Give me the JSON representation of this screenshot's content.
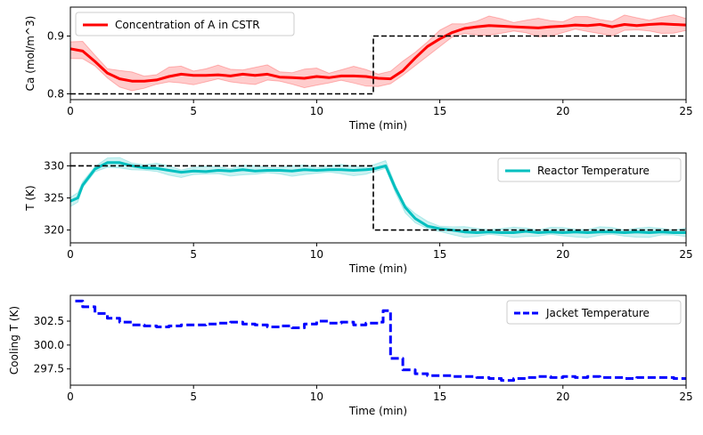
{
  "chart_data": [
    {
      "type": "line",
      "xlabel": "Time (min)",
      "ylabel": "Ca (mol/m^3)",
      "xlim": [
        0,
        25
      ],
      "ylim": [
        0.79,
        0.95
      ],
      "xticks": [
        0,
        5,
        10,
        15,
        20,
        25
      ],
      "xtick_labels": [
        "0",
        "5",
        "10",
        "15",
        "20",
        "25"
      ],
      "yticks": [
        0.8,
        0.9
      ],
      "ytick_labels": [
        "0.8",
        "0.9"
      ],
      "grid": false,
      "legend_position": "upper-left",
      "series": [
        {
          "name": "Concentration of A in CSTR",
          "color": "#ff0000",
          "style": "solid",
          "band_color": "#ff0000",
          "x": [
            0,
            0.5,
            1,
            1.5,
            2,
            2.5,
            3,
            3.5,
            4,
            4.5,
            5,
            5.5,
            6,
            6.5,
            7,
            7.5,
            8,
            8.5,
            9,
            9.5,
            10,
            10.5,
            11,
            11.5,
            12,
            12.5,
            13,
            13.5,
            14,
            14.5,
            15,
            15.5,
            16,
            16.5,
            17,
            17.5,
            18,
            18.5,
            19,
            19.5,
            20,
            20.5,
            21,
            21.5,
            22,
            22.5,
            23,
            23.5,
            24,
            24.5,
            25
          ],
          "y": [
            0.878,
            0.874,
            0.856,
            0.836,
            0.826,
            0.822,
            0.822,
            0.824,
            0.83,
            0.834,
            0.832,
            0.832,
            0.833,
            0.831,
            0.834,
            0.832,
            0.834,
            0.829,
            0.828,
            0.827,
            0.83,
            0.828,
            0.831,
            0.831,
            0.83,
            0.827,
            0.826,
            0.84,
            0.862,
            0.882,
            0.895,
            0.906,
            0.913,
            0.916,
            0.918,
            0.917,
            0.916,
            0.915,
            0.914,
            0.916,
            0.917,
            0.919,
            0.918,
            0.92,
            0.916,
            0.92,
            0.918,
            0.92,
            0.921,
            0.92,
            0.919
          ],
          "band": 0.012
        },
        {
          "name": "",
          "color": "#000000",
          "style": "dashed",
          "x": [
            0,
            12.3,
            12.3,
            25
          ],
          "y": [
            0.8,
            0.8,
            0.9,
            0.9
          ]
        }
      ]
    },
    {
      "type": "line",
      "xlabel": "Time (min)",
      "ylabel": "T (K)",
      "xlim": [
        0,
        25
      ],
      "ylim": [
        318,
        332
      ],
      "xticks": [
        0,
        5,
        10,
        15,
        20,
        25
      ],
      "xtick_labels": [
        "0",
        "5",
        "10",
        "15",
        "20",
        "25"
      ],
      "yticks": [
        320,
        325,
        330
      ],
      "ytick_labels": [
        "320",
        "325",
        "330"
      ],
      "grid": false,
      "legend_position": "upper-right",
      "series": [
        {
          "name": "Reactor Temperature",
          "color": "#00bfbf",
          "style": "solid",
          "band_color": "#00bfbf",
          "x": [
            0,
            0.3,
            0.5,
            1,
            1.5,
            2,
            2.5,
            3,
            3.5,
            4,
            4.5,
            5,
            5.5,
            6,
            6.5,
            7,
            7.5,
            8,
            8.5,
            9,
            9.5,
            10,
            10.5,
            11,
            11.5,
            12,
            12.3,
            12.8,
            13.2,
            13.6,
            14,
            14.5,
            15,
            15.5,
            16,
            16.5,
            17,
            17.5,
            18,
            18.5,
            19,
            19.5,
            20,
            20.5,
            21,
            21.5,
            22,
            22.5,
            23,
            23.5,
            24,
            24.5,
            25
          ],
          "y": [
            324.5,
            325,
            327,
            329.5,
            330.5,
            330.5,
            330,
            329.7,
            329.6,
            329.3,
            329,
            329.2,
            329.1,
            329.3,
            329.2,
            329.4,
            329.2,
            329.3,
            329.3,
            329.2,
            329.4,
            329.3,
            329.4,
            329.4,
            329.3,
            329.4,
            329.5,
            330,
            326.5,
            323.5,
            321.8,
            320.6,
            320.2,
            320,
            319.7,
            319.6,
            319.7,
            319.6,
            319.6,
            319.8,
            319.6,
            319.7,
            319.6,
            319.7,
            319.6,
            319.7,
            319.7,
            319.6,
            319.7,
            319.6,
            319.7,
            319.6,
            319.6
          ],
          "band": 0.6
        },
        {
          "name": "",
          "color": "#000000",
          "style": "dashed",
          "x": [
            0,
            12.3,
            12.3,
            25
          ],
          "y": [
            330,
            330,
            320,
            320
          ]
        }
      ]
    },
    {
      "type": "line",
      "xlabel": "Time (min)",
      "ylabel": "Cooling T (K)",
      "xlim": [
        0,
        25
      ],
      "ylim": [
        295.8,
        305.2
      ],
      "xticks": [
        0,
        5,
        10,
        15,
        20,
        25
      ],
      "xtick_labels": [
        "0",
        "5",
        "10",
        "15",
        "20",
        "25"
      ],
      "yticks": [
        297.5,
        300.0,
        302.5
      ],
      "ytick_labels": [
        "297.5",
        "300.0",
        "302.5"
      ],
      "grid": false,
      "legend_position": "upper-right",
      "series": [
        {
          "name": "Jacket Temperature",
          "color": "#0000ff",
          "style": "dashed",
          "step": true,
          "x": [
            0.2,
            0.5,
            1,
            1.5,
            2,
            2.5,
            3,
            3.5,
            4,
            4.5,
            5,
            5.5,
            6,
            6.5,
            7,
            7.5,
            8,
            8.5,
            9,
            9.5,
            10,
            10.5,
            11,
            11.5,
            12,
            12.5,
            12.7,
            13,
            13.5,
            14,
            14.5,
            15,
            15.5,
            16,
            16.5,
            17,
            17.5,
            18,
            18.5,
            19,
            19.5,
            20,
            20.5,
            21,
            21.5,
            22,
            22.5,
            23,
            23.5,
            24,
            24.5,
            25
          ],
          "y": [
            304.6,
            304,
            303.3,
            302.8,
            302.4,
            302.1,
            302,
            301.9,
            302,
            302.1,
            302.1,
            302.2,
            302.3,
            302.4,
            302.2,
            302.1,
            301.9,
            302,
            301.8,
            302.2,
            302.5,
            302.3,
            302.4,
            302.1,
            302.3,
            302.4,
            303.6,
            298.6,
            297.4,
            297,
            296.8,
            296.8,
            296.7,
            296.7,
            296.6,
            296.5,
            296.3,
            296.5,
            296.6,
            296.7,
            296.6,
            296.7,
            296.6,
            296.7,
            296.6,
            296.6,
            296.5,
            296.6,
            296.6,
            296.6,
            296.5,
            296.5
          ],
          "band": 0
        }
      ]
    }
  ]
}
